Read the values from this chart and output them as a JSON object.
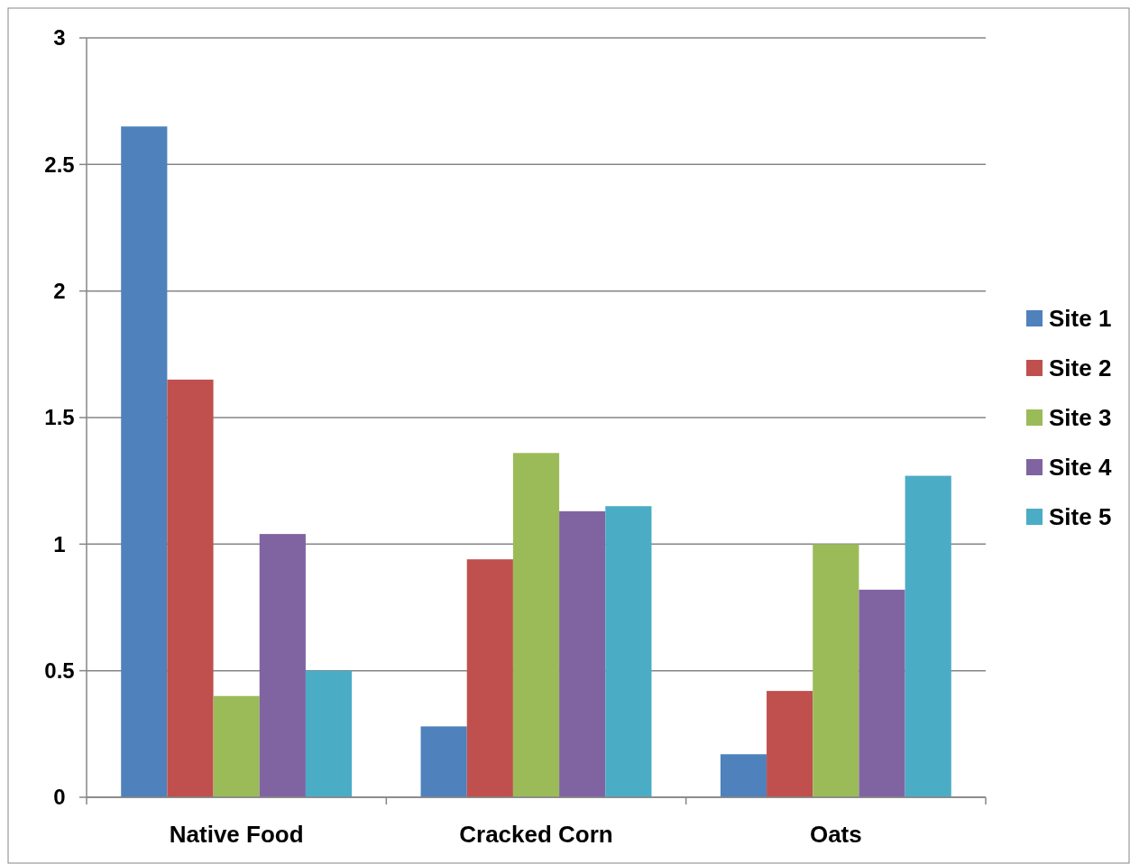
{
  "chart_data": {
    "type": "bar",
    "categories": [
      "Native Food",
      "Cracked Corn",
      "Oats"
    ],
    "series": [
      {
        "name": "Site 1",
        "color": "#4f81bd",
        "values": [
          2.65,
          0.28,
          0.17
        ]
      },
      {
        "name": "Site 2",
        "color": "#c0504d",
        "values": [
          1.65,
          0.94,
          0.42
        ]
      },
      {
        "name": "Site 3",
        "color": "#9bbb59",
        "values": [
          0.4,
          1.36,
          1.0
        ]
      },
      {
        "name": "Site 4",
        "color": "#8064a2",
        "values": [
          1.04,
          1.13,
          0.82
        ]
      },
      {
        "name": "Site 5",
        "color": "#4bacc6",
        "values": [
          0.5,
          1.15,
          1.27
        ]
      }
    ],
    "ylim": [
      0,
      3
    ],
    "yticks": [
      0,
      0.5,
      1,
      1.5,
      2,
      2.5,
      3
    ],
    "grid": "y",
    "legend": "right"
  }
}
